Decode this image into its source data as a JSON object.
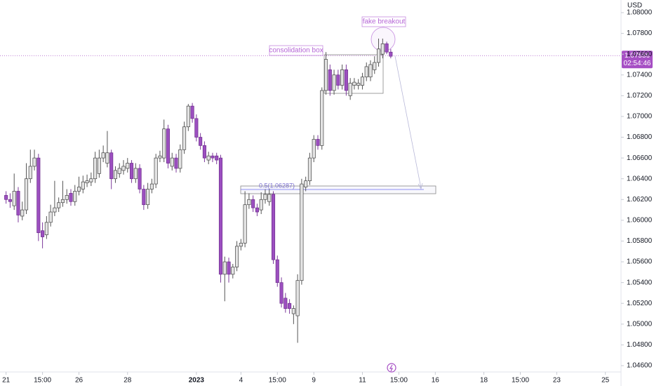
{
  "chart_data": {
    "type": "candlestick",
    "currency": "USD",
    "up_color": "#e3e3e3",
    "down_color": "#9c4fc0",
    "x": [
      0,
      1,
      2,
      3,
      4,
      5,
      6,
      7,
      8,
      9,
      10,
      11,
      12,
      13,
      14,
      15,
      16,
      17,
      18,
      19,
      20,
      21,
      22,
      23,
      24,
      25,
      26,
      27,
      28,
      29,
      30,
      31,
      32,
      33,
      34,
      35,
      36,
      37,
      38,
      39,
      40,
      41,
      42,
      43,
      44,
      45,
      46,
      47,
      48,
      49,
      50,
      51,
      52,
      53,
      54,
      55,
      56,
      57,
      58,
      59,
      60,
      61,
      62,
      63,
      64,
      65,
      66,
      67,
      68,
      69,
      70,
      71,
      72,
      73,
      74,
      75,
      76,
      77,
      78,
      79,
      80,
      81,
      82,
      83,
      84,
      85,
      86,
      87,
      88,
      89,
      90,
      91,
      92,
      93,
      94,
      95
    ],
    "open": [
      1.0624,
      1.062,
      1.0614,
      1.0628,
      1.0604,
      1.061,
      1.064,
      1.0652,
      1.066,
      1.059,
      1.0586,
      1.0598,
      1.0608,
      1.0612,
      1.0617,
      1.062,
      1.0626,
      1.0618,
      1.0628,
      1.063,
      1.0636,
      1.0637,
      1.064,
      1.0645,
      1.066,
      1.0655,
      1.0665,
      1.064,
      1.0645,
      1.0648,
      1.065,
      1.0655,
      1.064,
      1.065,
      1.063,
      1.0615,
      1.063,
      1.0635,
      1.066,
      1.066,
      1.0688,
      1.0652,
      1.066,
      1.065,
      1.0668,
      1.069,
      1.071,
      1.0698,
      1.068,
      1.0672,
      1.0658,
      1.0662,
      1.0662,
      1.066,
      1.0548,
      1.056,
      1.0548,
      1.0555,
      1.0575,
      1.0578,
      1.0615,
      1.062,
      1.0612,
      1.061,
      1.062,
      1.0618,
      1.0625,
      1.0562,
      1.054,
      1.0525,
      1.052,
      1.051,
      1.0508,
      1.0542,
      1.0632,
      1.0638,
      1.066,
      1.0678,
      1.0672,
      1.0725,
      1.0745,
      1.0725,
      1.074,
      1.073,
      1.0745,
      1.072,
      1.073,
      1.073,
      1.073,
      1.0738,
      1.0738,
      1.0745,
      1.0752,
      1.076,
      1.077,
      1.0762
    ],
    "high": [
      1.0628,
      1.0626,
      1.0645,
      1.0632,
      1.0618,
      1.0655,
      1.0668,
      1.0668,
      1.0664,
      1.0598,
      1.0604,
      1.0615,
      1.0638,
      1.0622,
      1.0638,
      1.063,
      1.063,
      1.0634,
      1.0642,
      1.0643,
      1.0644,
      1.0646,
      1.0666,
      1.0668,
      1.0672,
      1.0686,
      1.0668,
      1.0652,
      1.0655,
      1.0658,
      1.066,
      1.0658,
      1.0655,
      1.0654,
      1.0634,
      1.0636,
      1.064,
      1.0664,
      1.0667,
      1.0697,
      1.0692,
      1.0665,
      1.0664,
      1.0673,
      1.0695,
      1.0712,
      1.0713,
      1.0702,
      1.0684,
      1.0676,
      1.0666,
      1.0665,
      1.0665,
      1.0663,
      1.0565,
      1.0564,
      1.0558,
      1.058,
      1.0582,
      1.0628,
      1.0626,
      1.0624,
      1.0616,
      1.0627,
      1.063,
      1.063,
      1.0628,
      1.0566,
      1.0545,
      1.053,
      1.0524,
      1.0518,
      1.0548,
      1.064,
      1.0642,
      1.0665,
      1.0682,
      1.0682,
      1.0728,
      1.0762,
      1.075,
      1.0745,
      1.0745,
      1.075,
      1.075,
      1.0737,
      1.0737,
      1.0736,
      1.0742,
      1.0752,
      1.0754,
      1.0758,
      1.0775,
      1.0775,
      1.0772,
      1.0765
    ],
    "low": [
      1.0616,
      1.0612,
      1.061,
      1.0598,
      1.06,
      1.0606,
      1.0636,
      1.0648,
      1.058,
      1.0573,
      1.0582,
      1.0594,
      1.0604,
      1.0608,
      1.0613,
      1.0616,
      1.0614,
      1.0614,
      1.0624,
      1.0626,
      1.0632,
      1.0633,
      1.0636,
      1.0641,
      1.0656,
      1.0651,
      1.063,
      1.0636,
      1.0641,
      1.0644,
      1.0646,
      1.0636,
      1.0636,
      1.0626,
      1.061,
      1.0611,
      1.0626,
      1.0631,
      1.0656,
      1.0656,
      1.065,
      1.0648,
      1.0646,
      1.0646,
      1.0664,
      1.0686,
      1.0694,
      1.0676,
      1.0668,
      1.0656,
      1.0654,
      1.0656,
      1.0654,
      1.054,
      1.0522,
      1.054,
      1.0544,
      1.0551,
      1.0571,
      1.0574,
      1.0611,
      1.0608,
      1.0604,
      1.0606,
      1.0616,
      1.0614,
      1.0558,
      1.0536,
      1.0516,
      1.0511,
      1.051,
      1.05,
      1.0482,
      1.0538,
      1.0628,
      1.0634,
      1.0656,
      1.0668,
      1.0668,
      1.0721,
      1.072,
      1.0721,
      1.0726,
      1.0726,
      1.072,
      1.0716,
      1.0726,
      1.0726,
      1.0726,
      1.0734,
      1.0734,
      1.0741,
      1.0748,
      1.0756,
      1.076,
      1.0756
    ],
    "close": [
      1.062,
      1.0618,
      1.0628,
      1.0605,
      1.061,
      1.064,
      1.0652,
      1.066,
      1.0588,
      1.0584,
      1.0598,
      1.0608,
      1.0612,
      1.0617,
      1.062,
      1.0624,
      1.0618,
      1.0628,
      1.0632,
      1.0637,
      1.0638,
      1.064,
      1.066,
      1.066,
      1.0665,
      1.0665,
      1.064,
      1.0648,
      1.065,
      1.0652,
      1.0655,
      1.064,
      1.065,
      1.063,
      1.0615,
      1.063,
      1.0635,
      1.066,
      1.0662,
      1.0688,
      1.0655,
      1.066,
      1.065,
      1.0668,
      1.069,
      1.071,
      1.0698,
      1.068,
      1.0672,
      1.066,
      1.0662,
      1.066,
      1.0658,
      1.0548,
      1.056,
      1.0548,
      1.0555,
      1.0575,
      1.0578,
      1.0615,
      1.062,
      1.0612,
      1.0608,
      1.062,
      1.0625,
      1.0625,
      1.0562,
      1.054,
      1.052,
      1.0515,
      1.0515,
      1.0515,
      1.0542,
      1.0635,
      1.0638,
      1.066,
      1.0678,
      1.0672,
      1.0725,
      1.0755,
      1.0725,
      1.074,
      1.073,
      1.0745,
      1.0725,
      1.0732,
      1.0733,
      1.0732,
      1.0738,
      1.0748,
      1.075,
      1.0752,
      1.0765,
      1.077,
      1.0762,
      1.0758
    ],
    "xlim": [
      -1.5,
      151
    ],
    "xticks": [
      {
        "value": 0,
        "label": "21"
      },
      {
        "value": 9,
        "label": "15:00"
      },
      {
        "value": 18,
        "label": "26"
      },
      {
        "value": 30,
        "label": "28"
      },
      {
        "value": 47,
        "label": "2023"
      },
      {
        "value": 58,
        "label": "4"
      },
      {
        "value": 67,
        "label": "15:00"
      },
      {
        "value": 76,
        "label": "9"
      },
      {
        "value": 88,
        "label": "11"
      },
      {
        "value": 97,
        "label": "15:00"
      },
      {
        "value": 106,
        "label": "16"
      },
      {
        "value": 118,
        "label": "18"
      },
      {
        "value": 127,
        "label": "15:00"
      },
      {
        "value": 136,
        "label": "23"
      },
      {
        "value": 148,
        "label": "25"
      }
    ],
    "ylim": [
      1.046,
      1.08
    ],
    "yticks": [
      {
        "value": 1.046,
        "label": "1.04600"
      },
      {
        "value": 1.048,
        "label": "1.04800"
      },
      {
        "value": 1.05,
        "label": "1.05000"
      },
      {
        "value": 1.052,
        "label": "1.05200"
      },
      {
        "value": 1.054,
        "label": "1.05400"
      },
      {
        "value": 1.056,
        "label": "1.05600"
      },
      {
        "value": 1.058,
        "label": "1.05800"
      },
      {
        "value": 1.06,
        "label": "1.06000"
      },
      {
        "value": 1.062,
        "label": "1.06200"
      },
      {
        "value": 1.064,
        "label": "1.06400"
      },
      {
        "value": 1.066,
        "label": "1.06600"
      },
      {
        "value": 1.068,
        "label": "1.06800"
      },
      {
        "value": 1.07,
        "label": "1.07000"
      },
      {
        "value": 1.072,
        "label": "1.07200"
      },
      {
        "value": 1.074,
        "label": "1.07400"
      },
      {
        "value": 1.076,
        "label": "1.07600"
      },
      {
        "value": 1.078,
        "label": "1.07800"
      },
      {
        "value": 1.08,
        "label": "1.08000"
      }
    ],
    "last_price": 1.07586,
    "last_price_color": "#a64fc4",
    "countdown": "02:54:46",
    "annotations": {
      "fake_breakout": "fake breakout",
      "consolidation_box": "consolidation box",
      "fib_level": "0.5(1.06287)"
    }
  }
}
